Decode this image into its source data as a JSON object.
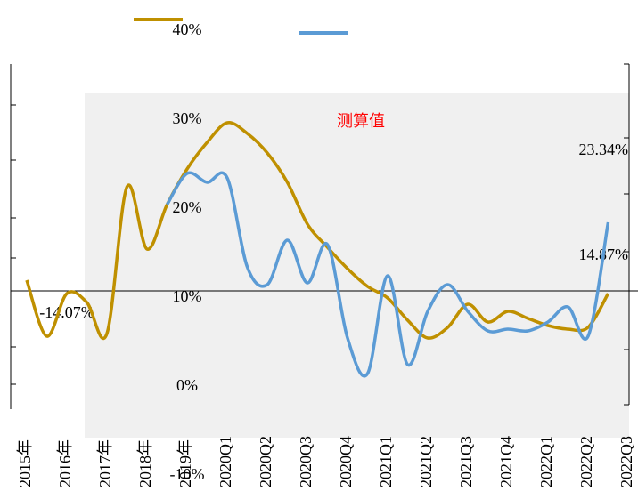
{
  "chart_data": {
    "type": "line",
    "annotations": [
      "测算值",
      "23.34%",
      "14.87%",
      "-14.07%"
    ],
    "categories": [
      "2015年",
      null,
      "2016年",
      null,
      "2017年",
      null,
      "2018年",
      null,
      "2019年",
      null,
      "2020Q1",
      null,
      "2020Q2",
      null,
      "2020Q3",
      null,
      "2020Q4",
      null,
      "2021Q1",
      null,
      "2021Q2",
      null,
      "2021Q3",
      null,
      "2021Q4",
      null,
      "2022Q1",
      null,
      "2022Q2",
      null,
      "2022Q3"
    ],
    "series": [
      {
        "color": "#bf9000",
        "values": [
          12.0,
          5.7,
          10.5,
          9.5,
          6.0,
          22.5,
          15.5,
          20.5,
          24.5,
          27.5,
          29.7,
          28.5,
          26.3,
          23.0,
          18.3,
          15.7,
          13.3,
          11.3,
          10.0,
          7.5,
          5.5,
          6.7,
          9.3,
          7.3,
          8.5,
          7.7,
          6.9,
          6.5,
          6.7,
          10.5,
          null
        ]
      },
      {
        "color": "#5b9bd5",
        "values": [
          null,
          null,
          null,
          null,
          null,
          null,
          null,
          20.5,
          24.0,
          23.0,
          23.5,
          13.5,
          11.5,
          16.5,
          11.7,
          16.0,
          5.5,
          1.5,
          12.5,
          2.5,
          8.5,
          11.5,
          8.5,
          6.3,
          6.5,
          6.3,
          7.3,
          9.0,
          5.7,
          18.5,
          null
        ]
      }
    ],
    "ylim": [
      -10,
      40
    ],
    "yticks": [
      {
        "value": -10,
        "label": "-10%"
      },
      {
        "value": 0,
        "label": "0%"
      },
      {
        "value": 10,
        "label": "10%"
      },
      {
        "value": 20,
        "label": "20%"
      },
      {
        "value": 30,
        "label": "30%"
      },
      {
        "value": 40,
        "label": "40%"
      }
    ]
  }
}
